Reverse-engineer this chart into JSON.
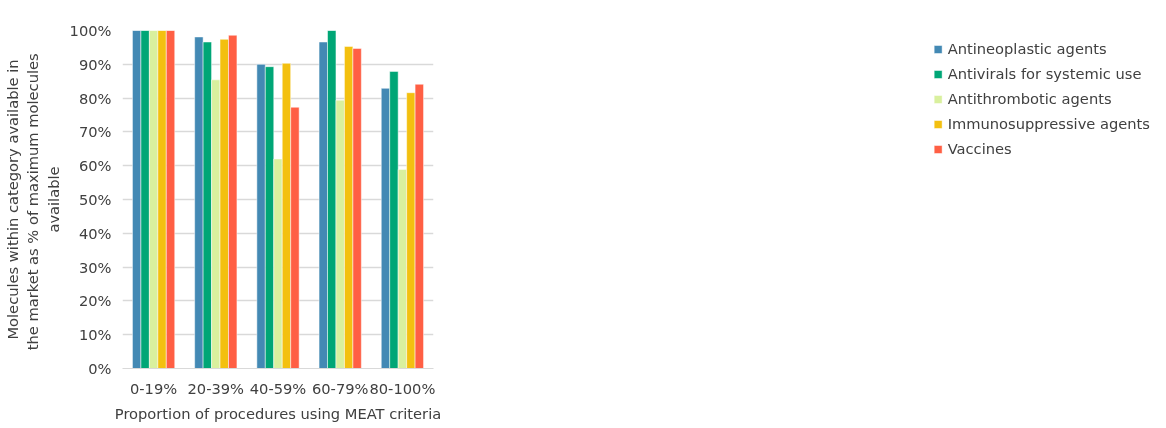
{
  "chart_data": {
    "type": "bar",
    "xlabel": "Proportion of procedures using MEAT criteria",
    "ylabel": "Molecules within category available in the market  as % of maximum molecules  available",
    "categories": [
      "0-19%",
      "20-39%",
      "40-59%",
      "60-79%",
      "80-100%"
    ],
    "series": [
      {
        "name": "Antineoplastic agents",
        "color": "#4389b4",
        "values": [
          100,
          98.1,
          90.0,
          96.6,
          82.9
        ]
      },
      {
        "name": "Antivirals for systemic use",
        "color": "#00a676",
        "values": [
          100,
          96.6,
          89.3,
          100,
          87.9
        ]
      },
      {
        "name": "Antithrombotic agents",
        "color": "#d9f09e",
        "values": [
          100,
          85.4,
          62.0,
          79.4,
          58.9
        ]
      },
      {
        "name": "Immunosuppressive agents",
        "color": "#f3c010",
        "values": [
          100,
          97.4,
          90.3,
          95.3,
          81.6
        ]
      },
      {
        "name": "Vaccines",
        "color": "#ff5f44",
        "values": [
          100,
          98.6,
          77.3,
          94.7,
          84.1
        ]
      }
    ],
    "ylim": [
      0,
      100
    ],
    "yticks": [
      {
        "value": 0,
        "label": "0%"
      },
      {
        "value": 10,
        "label": "10%"
      },
      {
        "value": 20,
        "label": "20%"
      },
      {
        "value": 30,
        "label": "30%"
      },
      {
        "value": 40,
        "label": "40%"
      },
      {
        "value": 50,
        "label": "50%"
      },
      {
        "value": 60,
        "label": "60%"
      },
      {
        "value": 70,
        "label": "70%"
      },
      {
        "value": 80,
        "label": "80%"
      },
      {
        "value": 90,
        "label": "90%"
      },
      {
        "value": 100,
        "label": "100%"
      }
    ],
    "grid": "y",
    "legend": "right"
  }
}
